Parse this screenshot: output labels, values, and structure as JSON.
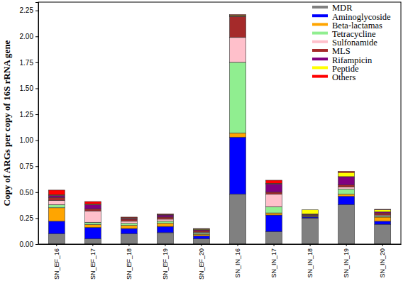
{
  "chart_data": {
    "type": "bar",
    "stacked": true,
    "legend": "top-right",
    "grid": false,
    "ylabel": "Copy of ARGs per copy of 16S rRNA gene",
    "categories": [
      "SN_EF_16",
      "SN_EF_17",
      "SN_EF_18",
      "SN_EF_19",
      "SN_EF_20",
      "SN_IN_16",
      "SN_IN_17",
      "SN_IN_18",
      "SN_IN_19",
      "SN_IN_20"
    ],
    "ylim": [
      0,
      2.33
    ],
    "yticks": [
      {
        "value": 0,
        "label": "0.00"
      },
      0.25,
      {
        "value": 0.5,
        "label": "0.50"
      },
      0.75,
      {
        "value": 1,
        "label": "1.00"
      },
      1.25,
      {
        "value": 1.5,
        "label": "1.50"
      },
      1.75,
      {
        "value": 2,
        "label": "2.00"
      },
      2.25
    ],
    "series": [
      {
        "name": "MDR",
        "color": "#808080",
        "values": [
          0.1,
          0.05,
          0.1,
          0.11,
          0.05,
          0.48,
          0.12,
          0.25,
          0.38,
          0.19
        ]
      },
      {
        "name": "Aminoglycoside",
        "color": "#0000ff",
        "values": [
          0.12,
          0.11,
          0.05,
          0.06,
          0.03,
          0.55,
          0.16,
          0.01,
          0.08,
          0.03
        ]
      },
      {
        "name": "Beta-lactamas",
        "color": "#ffa500",
        "values": [
          0.13,
          0.03,
          0.03,
          0.03,
          0.015,
          0.04,
          0.02,
          0.005,
          0.02,
          0.04
        ]
      },
      {
        "name": "Tetracycline",
        "color": "#90ee90",
        "values": [
          0.03,
          0.02,
          0.02,
          0.02,
          0.01,
          0.68,
          0.06,
          0.005,
          0.05,
          0.01
        ]
      },
      {
        "name": "Sulfonamide",
        "color": "#ffc0cb",
        "values": [
          0.04,
          0.11,
          0.02,
          0.02,
          0.01,
          0.24,
          0.12,
          0.005,
          0.02,
          0.01
        ]
      },
      {
        "name": "MLS",
        "color": "#a52a2a",
        "values": [
          0.03,
          0.02,
          0.02,
          0.02,
          0.015,
          0.2,
          0.02,
          0.01,
          0.02,
          0.02
        ]
      },
      {
        "name": "Rifampicin",
        "color": "#800080",
        "values": [
          0.02,
          0.04,
          0.01,
          0.02,
          0.01,
          0.005,
          0.08,
          0.005,
          0.08,
          0.01
        ]
      },
      {
        "name": "Peptide",
        "color": "#ffff00",
        "values": [
          0.005,
          0.005,
          0.005,
          0.005,
          0.005,
          0.01,
          0.005,
          0.04,
          0.04,
          0.02
        ]
      },
      {
        "name": "Others",
        "color": "#ff0000",
        "values": [
          0.045,
          0.025,
          0.005,
          0.005,
          0.005,
          0.005,
          0.03,
          0,
          0.01,
          0.005
        ]
      }
    ]
  }
}
